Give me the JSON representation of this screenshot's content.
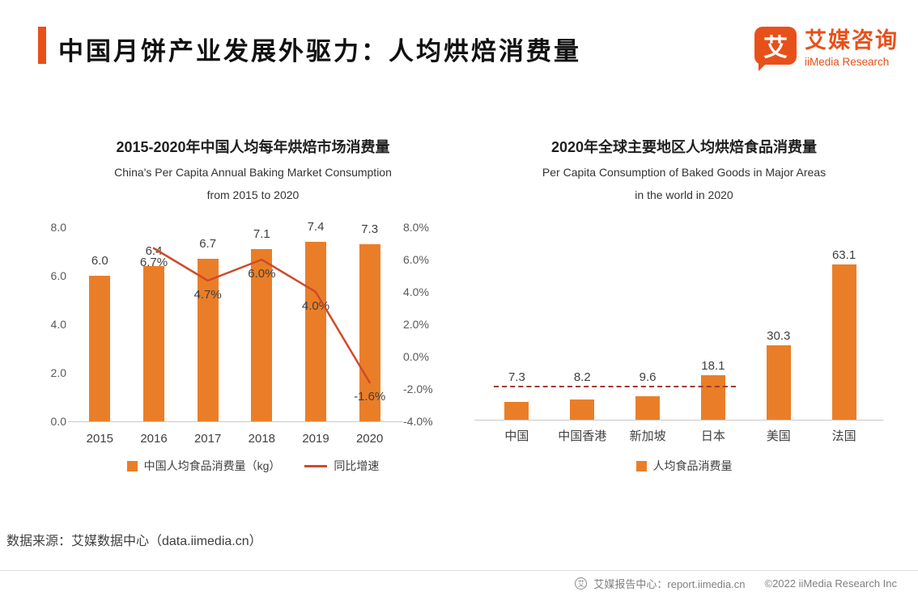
{
  "page": {
    "title": "中国月饼产业发展外驱力：人均烘焙消费量",
    "logo": {
      "glyph": "艾",
      "brand_zh": "艾媒咨询",
      "brand_en": "iiMedia Research"
    },
    "source_note": "数据来源：艾媒数据中心（data.iimedia.cn）",
    "footer": {
      "icon": "艾",
      "report_center": "艾媒报告中心：report.iimedia.cn",
      "copyright": "©2022  iiMedia Research Inc"
    }
  },
  "colors": {
    "accent": "#E8501A",
    "bar": "#EA7E28",
    "line": "#CE4B28",
    "dash": "#A23A2E"
  },
  "chart_data": [
    {
      "type": "bar+line",
      "title": "2015-2020年中国人均每年烘焙市场消费量",
      "subtitle_line1": "China's Per Capita Annual Baking Market Consumption",
      "subtitle_line2": "from 2015 to 2020",
      "categories": [
        "2015",
        "2016",
        "2017",
        "2018",
        "2019",
        "2020"
      ],
      "bar_series": {
        "name": "中国人均食品消费量（kg）",
        "unit": "kg",
        "values": [
          6.0,
          6.4,
          6.7,
          7.1,
          7.4,
          7.3
        ],
        "labels": [
          "6.0",
          "6.4",
          "6.7",
          "7.1",
          "7.4",
          "7.3"
        ]
      },
      "line_series": {
        "name": "同比增速",
        "unit": "%",
        "values": [
          null,
          6.7,
          4.7,
          6.0,
          4.0,
          -1.6
        ],
        "labels": [
          null,
          "6.7%",
          "4.7%",
          "6.0%",
          "4.0%",
          "-1.6%"
        ]
      },
      "left_axis": {
        "min": 0,
        "max": 8,
        "ticks": [
          "0.0",
          "2.0",
          "4.0",
          "6.0",
          "8.0"
        ]
      },
      "right_axis": {
        "min": -4,
        "max": 8,
        "ticks": [
          "8.0%",
          "6.0%",
          "4.0%",
          "2.0%",
          "0.0%",
          "-2.0%",
          "-4.0%"
        ]
      },
      "grid": false,
      "legend_position": "bottom"
    },
    {
      "type": "bar",
      "title": "2020年全球主要地区人均烘焙食品消费量",
      "subtitle_line1": "Per Capita Consumption of Baked Goods in Major Areas",
      "subtitle_line2": "in the world in 2020",
      "categories": [
        "中国",
        "中国香港",
        "新加坡",
        "日本",
        "美国",
        "法国"
      ],
      "series": [
        {
          "name": "人均食品消费量",
          "values": [
            7.3,
            8.2,
            9.6,
            18.1,
            30.3,
            63.1
          ],
          "labels": [
            "7.3",
            "8.2",
            "9.6",
            "18.1",
            "30.3",
            "63.1"
          ]
        }
      ],
      "reference_line": {
        "style": "dashed",
        "approx_value": 13.5,
        "span_categories": [
          "中国",
          "日本"
        ]
      },
      "ylim": [
        0,
        70
      ],
      "grid": false,
      "legend_position": "bottom"
    }
  ]
}
